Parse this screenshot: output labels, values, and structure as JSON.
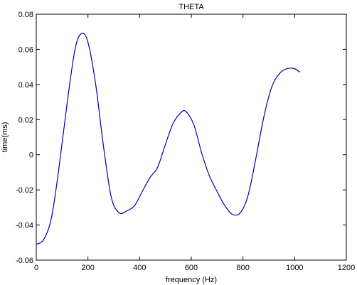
{
  "chart_data": {
    "type": "line",
    "title": "THETA",
    "xlabel": "frequency (Hz)",
    "ylabel": "time(ms)",
    "xlim": [
      0,
      1200
    ],
    "ylim": [
      -0.06,
      0.08
    ],
    "xticks": [
      0,
      200,
      400,
      600,
      800,
      1000,
      1200
    ],
    "xtick_labels": [
      "0",
      "200",
      "400",
      "600",
      "800",
      "1000",
      "1200"
    ],
    "yticks": [
      -0.06,
      -0.04,
      -0.02,
      0,
      0.02,
      0.04,
      0.06,
      0.08
    ],
    "ytick_labels": [
      "-0.06",
      "-0.04",
      "-0.02",
      "0",
      "0.02",
      "0.04",
      "0.06",
      "0.08"
    ],
    "grid": false,
    "line_color": "#0000aa",
    "series": [
      {
        "x": [
          0,
          30,
          60,
          90,
          120,
          150,
          175,
          200,
          230,
          260,
          290,
          320,
          350,
          380,
          410,
          440,
          470,
          500,
          530,
          560,
          580,
          610,
          640,
          670,
          700,
          730,
          760,
          790,
          820,
          850,
          880,
          910,
          940,
          970,
          1000,
          1020
        ],
        "y": [
          -0.051,
          -0.048,
          -0.035,
          -0.005,
          0.03,
          0.06,
          0.069,
          0.064,
          0.04,
          0.005,
          -0.024,
          -0.033,
          -0.032,
          -0.029,
          -0.021,
          -0.013,
          -0.007,
          0.006,
          0.018,
          0.024,
          0.0245,
          0.017,
          0.001,
          -0.012,
          -0.021,
          -0.029,
          -0.034,
          -0.033,
          -0.023,
          -0.002,
          0.021,
          0.038,
          0.046,
          0.049,
          0.049,
          0.047
        ]
      }
    ]
  }
}
